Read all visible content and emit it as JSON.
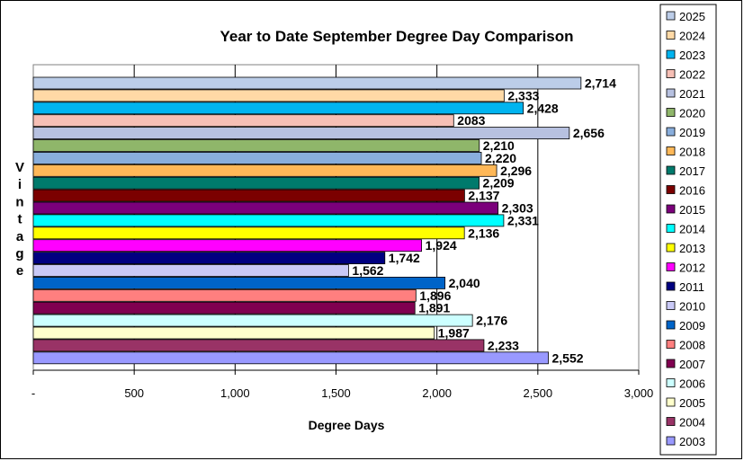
{
  "chart_data": {
    "type": "bar",
    "orientation": "horizontal",
    "title": "Year to Date September Degree Day Comparison",
    "xlabel": "Degree Days",
    "ylabel": "Vintage",
    "xlim": [
      0,
      3000
    ],
    "x_ticks": [
      0,
      500,
      1000,
      1500,
      2000,
      2500,
      3000
    ],
    "x_tick_labels": [
      "-",
      "500",
      "1,000",
      "1,500",
      "2,000",
      "2,500",
      "3,000"
    ],
    "grid": "vertical",
    "legend_position": "right",
    "categories": [
      "2025",
      "2024",
      "2023",
      "2022",
      "2021",
      "2020",
      "2019",
      "2018",
      "2017",
      "2016",
      "2015",
      "2014",
      "2013",
      "2012",
      "2011",
      "2010",
      "2009",
      "2008",
      "2007",
      "2006",
      "2005",
      "2004",
      "2003"
    ],
    "values": [
      2714,
      2333,
      2428,
      2083,
      2656,
      2210,
      2220,
      2296,
      2209,
      2137,
      2303,
      2331,
      2136,
      1924,
      1742,
      1562,
      2040,
      1896,
      1891,
      2176,
      1987,
      2233,
      2552
    ],
    "data_labels": [
      "2,714",
      "2,333",
      "2,428",
      "2083",
      "2,656",
      "2,210",
      "2,220",
      "2,296",
      "2,209",
      "2,137",
      "2,303",
      "2,331",
      "2,136",
      "1,924",
      "1,742",
      "1,562",
      "2,040",
      "1,896",
      "1,891",
      "2,176",
      "1,987",
      "2,233",
      "2,552"
    ],
    "colors": [
      "#BCCDE8",
      "#FFD9A6",
      "#00B4F0",
      "#F6BFB5",
      "#B7C1E0",
      "#8FB66A",
      "#89AEDC",
      "#FFB858",
      "#007A6C",
      "#7B0000",
      "#7B007B",
      "#00FFFF",
      "#FFFF00",
      "#FF00FF",
      "#000080",
      "#C9C9F6",
      "#0064C8",
      "#FF7F7F",
      "#800050",
      "#CCFFFF",
      "#FFFFCC",
      "#993366",
      "#9999FF"
    ]
  }
}
